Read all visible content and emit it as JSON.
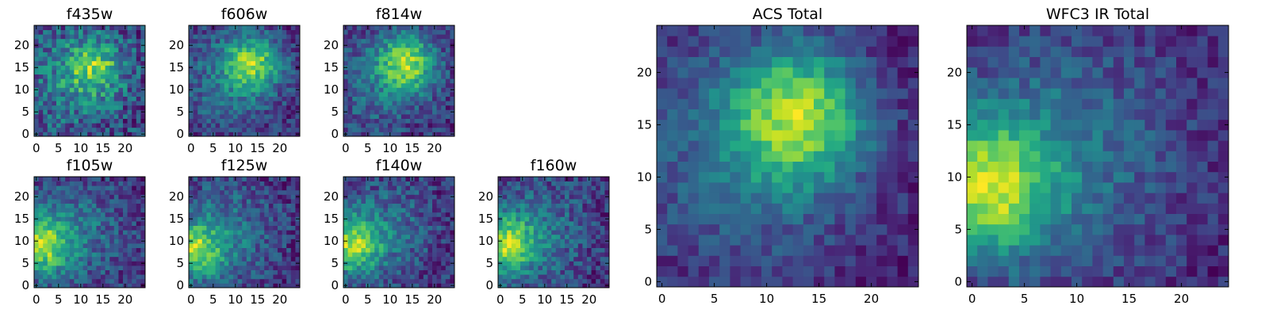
{
  "figure": {
    "colormap": "viridis",
    "background": "#ffffff"
  },
  "chart_data": [
    {
      "type": "heatmap",
      "title": "f435w",
      "grid": [
        25,
        25
      ],
      "xlim": [
        0,
        24
      ],
      "ylim": [
        0,
        24
      ],
      "xticks": [
        "0",
        "5",
        "10",
        "15",
        "20"
      ],
      "yticks": [
        "0",
        "5",
        "10",
        "15",
        "20"
      ],
      "peak": {
        "x": 13,
        "y": 15
      },
      "noise": "high"
    },
    {
      "type": "heatmap",
      "title": "f606w",
      "grid": [
        25,
        25
      ],
      "xlim": [
        0,
        24
      ],
      "ylim": [
        0,
        24
      ],
      "xticks": [
        "0",
        "5",
        "10",
        "15",
        "20"
      ],
      "yticks": [
        "0",
        "5",
        "10",
        "15",
        "20"
      ],
      "peak": {
        "x": 14,
        "y": 16
      },
      "noise": "medium"
    },
    {
      "type": "heatmap",
      "title": "f814w",
      "grid": [
        25,
        25
      ],
      "xlim": [
        0,
        24
      ],
      "ylim": [
        0,
        24
      ],
      "xticks": [
        "0",
        "5",
        "10",
        "15",
        "20"
      ],
      "yticks": [
        "0",
        "5",
        "10",
        "15",
        "20"
      ],
      "peak": {
        "x": 14,
        "y": 16
      },
      "noise": "medium"
    },
    {
      "type": "heatmap",
      "title": "f105w",
      "grid": [
        25,
        25
      ],
      "xlim": [
        0,
        24
      ],
      "ylim": [
        0,
        24
      ],
      "xticks": [
        "0",
        "5",
        "10",
        "15",
        "20"
      ],
      "yticks": [
        "0",
        "5",
        "10",
        "15",
        "20"
      ],
      "peak": {
        "x": 1,
        "y": 9
      },
      "noise": "medium"
    },
    {
      "type": "heatmap",
      "title": "f125w",
      "grid": [
        25,
        25
      ],
      "xlim": [
        0,
        24
      ],
      "ylim": [
        0,
        24
      ],
      "xticks": [
        "0",
        "5",
        "10",
        "15",
        "20"
      ],
      "yticks": [
        "0",
        "5",
        "10",
        "15",
        "20"
      ],
      "peak": {
        "x": 1,
        "y": 8
      },
      "noise": "medium"
    },
    {
      "type": "heatmap",
      "title": "f140w",
      "grid": [
        25,
        25
      ],
      "xlim": [
        0,
        24
      ],
      "ylim": [
        0,
        24
      ],
      "xticks": [
        "0",
        "5",
        "10",
        "15",
        "20"
      ],
      "yticks": [
        "0",
        "5",
        "10",
        "15",
        "20"
      ],
      "peak": {
        "x": 1,
        "y": 9
      },
      "noise": "medium"
    },
    {
      "type": "heatmap",
      "title": "f160w",
      "grid": [
        25,
        25
      ],
      "xlim": [
        0,
        24
      ],
      "ylim": [
        0,
        24
      ],
      "xticks": [
        "0",
        "5",
        "10",
        "15",
        "20"
      ],
      "yticks": [
        "0",
        "5",
        "10",
        "15",
        "20"
      ],
      "peak": {
        "x": 1,
        "y": 9
      },
      "noise": "medium"
    },
    {
      "type": "heatmap",
      "title": "ACS Total",
      "grid": [
        25,
        25
      ],
      "xlim": [
        0,
        24
      ],
      "ylim": [
        0,
        24
      ],
      "xticks": [
        "0",
        "5",
        "10",
        "15",
        "20"
      ],
      "yticks": [
        "0",
        "5",
        "10",
        "15",
        "20"
      ],
      "peak": {
        "x": 13,
        "y": 16
      },
      "noise": "low"
    },
    {
      "type": "heatmap",
      "title": "WFC3 IR Total",
      "grid": [
        25,
        25
      ],
      "xlim": [
        0,
        24
      ],
      "ylim": [
        0,
        24
      ],
      "xticks": [
        "0",
        "5",
        "10",
        "15",
        "20"
      ],
      "yticks": [
        "0",
        "5",
        "10",
        "15",
        "20"
      ],
      "peak": {
        "x": 1,
        "y": 9
      },
      "noise": "low"
    }
  ]
}
